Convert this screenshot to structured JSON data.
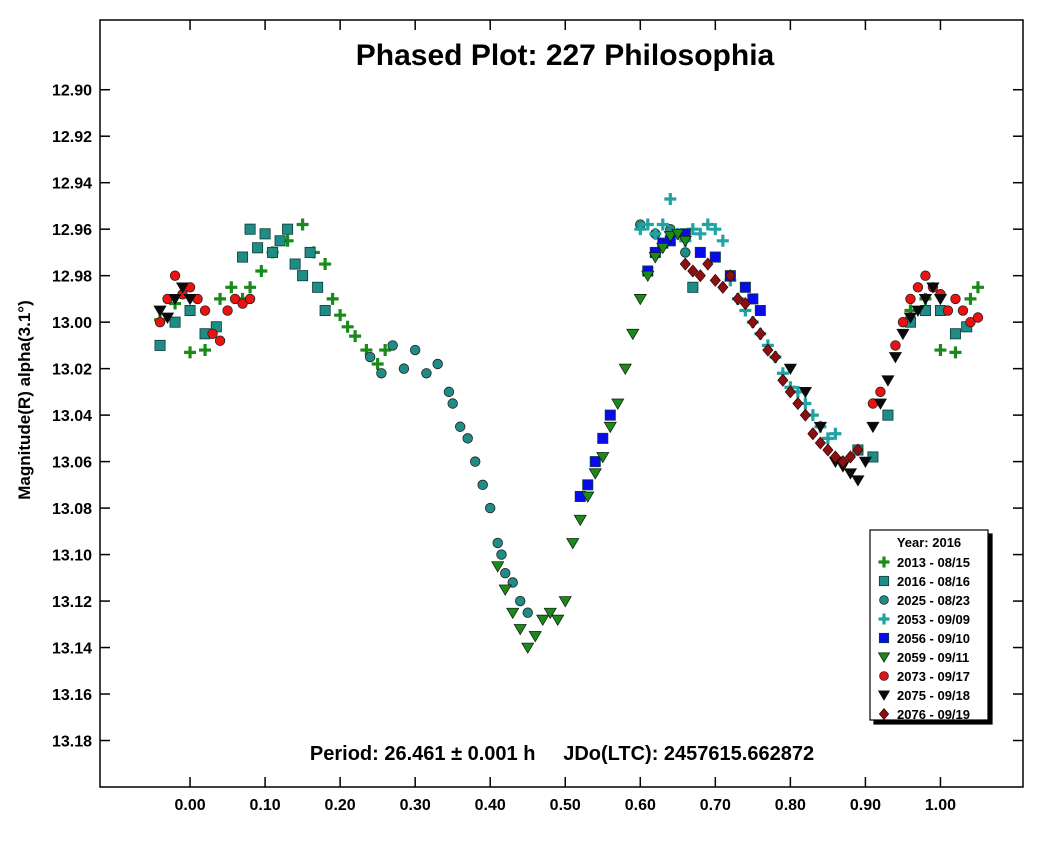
{
  "chart_data": {
    "type": "scatter",
    "title": "Phased Plot: 227 Philosophia",
    "xlabel": "",
    "ylabel": "Magnitude(R) alpha(3.1°)",
    "footer": "Period: 26.461 ± 0.001 h     JDo(LTC): 2457615.662872",
    "xlim": [
      -0.12,
      1.11
    ],
    "ylim": [
      12.87,
      13.2
    ],
    "y_inverted": true,
    "x_ticks": [
      "0.00",
      "0.10",
      "0.20",
      "0.30",
      "0.40",
      "0.50",
      "0.60",
      "0.70",
      "0.80",
      "0.90",
      "1.00"
    ],
    "y_ticks": [
      "12.90",
      "12.92",
      "12.94",
      "12.96",
      "12.98",
      "13.00",
      "13.02",
      "13.04",
      "13.06",
      "13.08",
      "13.10",
      "13.12",
      "13.14",
      "13.16",
      "13.18"
    ],
    "legend": {
      "title": "Year: 2016",
      "placement": "bottom-right",
      "entries": [
        {
          "label": "2013 - 08/15",
          "marker": "plus",
          "color": "#1a8a1a"
        },
        {
          "label": "2016 - 08/16",
          "marker": "square",
          "color": "#1f8c86"
        },
        {
          "label": "2025 - 08/23",
          "marker": "circle",
          "color": "#1f8c86"
        },
        {
          "label": "2053 - 09/09",
          "marker": "plus",
          "color": "#22a3a3"
        },
        {
          "label": "2056 - 09/10",
          "marker": "square",
          "color": "#0a0aee"
        },
        {
          "label": "2059 - 09/11",
          "marker": "triangle-down",
          "color": "#1a8a1a"
        },
        {
          "label": "2073 - 09/17",
          "marker": "circle",
          "color": "#ee1111"
        },
        {
          "label": "2075 - 09/18",
          "marker": "triangle-down",
          "color": "#0a0a0a"
        },
        {
          "label": "2076 - 09/19",
          "marker": "diamond",
          "color": "#8b1010"
        }
      ]
    },
    "series": [
      {
        "name": "2013 - 08/15",
        "points": [
          [
            -0.04,
            12.999
          ],
          [
            -0.02,
            12.992
          ],
          [
            0.0,
            13.013
          ],
          [
            0.02,
            13.012
          ],
          [
            0.04,
            12.99
          ],
          [
            0.055,
            12.985
          ],
          [
            0.07,
            12.99
          ],
          [
            0.08,
            12.985
          ],
          [
            0.095,
            12.978
          ],
          [
            0.11,
            12.97
          ],
          [
            0.13,
            12.965
          ],
          [
            0.15,
            12.958
          ],
          [
            0.165,
            12.97
          ],
          [
            0.18,
            12.975
          ],
          [
            0.19,
            12.99
          ],
          [
            0.2,
            12.997
          ],
          [
            0.21,
            13.002
          ],
          [
            0.22,
            13.006
          ],
          [
            0.235,
            13.012
          ],
          [
            0.25,
            13.018
          ],
          [
            0.26,
            13.012
          ],
          [
            0.96,
            12.995
          ],
          [
            0.98,
            12.99
          ],
          [
            1.0,
            13.012
          ],
          [
            1.02,
            13.013
          ],
          [
            1.04,
            12.99
          ],
          [
            1.05,
            12.985
          ]
        ]
      },
      {
        "name": "2016 - 08/16",
        "points": [
          [
            -0.04,
            13.01
          ],
          [
            -0.02,
            13.0
          ],
          [
            0.0,
            12.995
          ],
          [
            0.02,
            13.005
          ],
          [
            0.035,
            13.002
          ],
          [
            0.07,
            12.972
          ],
          [
            0.08,
            12.96
          ],
          [
            0.09,
            12.968
          ],
          [
            0.1,
            12.962
          ],
          [
            0.11,
            12.97
          ],
          [
            0.12,
            12.965
          ],
          [
            0.13,
            12.96
          ],
          [
            0.14,
            12.975
          ],
          [
            0.15,
            12.98
          ],
          [
            0.16,
            12.97
          ],
          [
            0.17,
            12.985
          ],
          [
            0.18,
            12.995
          ],
          [
            0.67,
            12.985
          ],
          [
            0.89,
            13.055
          ],
          [
            0.91,
            13.058
          ],
          [
            0.93,
            13.04
          ],
          [
            0.96,
            13.0
          ],
          [
            0.98,
            12.995
          ],
          [
            1.0,
            12.995
          ],
          [
            1.02,
            13.005
          ],
          [
            1.035,
            13.002
          ]
        ]
      },
      {
        "name": "2025 - 08/23",
        "points": [
          [
            0.24,
            13.015
          ],
          [
            0.255,
            13.022
          ],
          [
            0.27,
            13.01
          ],
          [
            0.285,
            13.02
          ],
          [
            0.3,
            13.012
          ],
          [
            0.315,
            13.022
          ],
          [
            0.33,
            13.018
          ],
          [
            0.345,
            13.03
          ],
          [
            0.35,
            13.035
          ],
          [
            0.36,
            13.045
          ],
          [
            0.37,
            13.05
          ],
          [
            0.38,
            13.06
          ],
          [
            0.39,
            13.07
          ],
          [
            0.4,
            13.08
          ],
          [
            0.41,
            13.095
          ],
          [
            0.415,
            13.1
          ],
          [
            0.42,
            13.108
          ],
          [
            0.43,
            13.112
          ],
          [
            0.44,
            13.12
          ],
          [
            0.45,
            13.125
          ],
          [
            0.6,
            12.958
          ],
          [
            0.62,
            12.962
          ],
          [
            0.64,
            12.96
          ],
          [
            0.66,
            12.97
          ]
        ]
      },
      {
        "name": "2053 - 09/09",
        "points": [
          [
            0.6,
            12.96
          ],
          [
            0.61,
            12.958
          ],
          [
            0.62,
            12.962
          ],
          [
            0.63,
            12.958
          ],
          [
            0.64,
            12.947
          ],
          [
            0.65,
            12.962
          ],
          [
            0.66,
            12.965
          ],
          [
            0.67,
            12.96
          ],
          [
            0.68,
            12.962
          ],
          [
            0.69,
            12.958
          ],
          [
            0.7,
            12.96
          ],
          [
            0.71,
            12.965
          ],
          [
            0.72,
            12.982
          ],
          [
            0.73,
            12.99
          ],
          [
            0.74,
            12.995
          ],
          [
            0.75,
            13.0
          ],
          [
            0.76,
            13.005
          ],
          [
            0.77,
            13.01
          ],
          [
            0.78,
            13.015
          ],
          [
            0.79,
            13.022
          ],
          [
            0.8,
            13.028
          ],
          [
            0.81,
            13.03
          ],
          [
            0.82,
            13.035
          ],
          [
            0.83,
            13.04
          ],
          [
            0.84,
            13.045
          ],
          [
            0.85,
            13.05
          ],
          [
            0.86,
            13.048
          ]
        ]
      },
      {
        "name": "2056 - 09/10",
        "points": [
          [
            0.52,
            13.075
          ],
          [
            0.53,
            13.07
          ],
          [
            0.54,
            13.06
          ],
          [
            0.55,
            13.05
          ],
          [
            0.56,
            13.04
          ],
          [
            0.61,
            12.978
          ],
          [
            0.62,
            12.97
          ],
          [
            0.63,
            12.966
          ],
          [
            0.64,
            12.965
          ],
          [
            0.66,
            12.962
          ],
          [
            0.68,
            12.97
          ],
          [
            0.7,
            12.972
          ],
          [
            0.72,
            12.98
          ],
          [
            0.74,
            12.985
          ],
          [
            0.75,
            12.99
          ],
          [
            0.76,
            12.995
          ]
        ]
      },
      {
        "name": "2059 - 09/11",
        "points": [
          [
            0.41,
            13.105
          ],
          [
            0.42,
            13.115
          ],
          [
            0.43,
            13.125
          ],
          [
            0.44,
            13.132
          ],
          [
            0.45,
            13.14
          ],
          [
            0.46,
            13.135
          ],
          [
            0.47,
            13.128
          ],
          [
            0.48,
            13.125
          ],
          [
            0.49,
            13.128
          ],
          [
            0.5,
            13.12
          ],
          [
            0.51,
            13.095
          ],
          [
            0.52,
            13.085
          ],
          [
            0.53,
            13.075
          ],
          [
            0.54,
            13.065
          ],
          [
            0.55,
            13.058
          ],
          [
            0.56,
            13.045
          ],
          [
            0.57,
            13.035
          ],
          [
            0.58,
            13.02
          ],
          [
            0.59,
            13.005
          ],
          [
            0.6,
            12.99
          ],
          [
            0.61,
            12.98
          ],
          [
            0.62,
            12.972
          ],
          [
            0.63,
            12.968
          ],
          [
            0.64,
            12.963
          ],
          [
            0.65,
            12.962
          ],
          [
            0.66,
            12.965
          ]
        ]
      },
      {
        "name": "2073 - 09/17",
        "points": [
          [
            -0.04,
            13.0
          ],
          [
            -0.03,
            12.99
          ],
          [
            -0.02,
            12.98
          ],
          [
            -0.01,
            12.988
          ],
          [
            0.0,
            12.985
          ],
          [
            0.01,
            12.99
          ],
          [
            0.02,
            12.995
          ],
          [
            0.03,
            13.005
          ],
          [
            0.04,
            13.008
          ],
          [
            0.05,
            12.995
          ],
          [
            0.06,
            12.99
          ],
          [
            0.07,
            12.992
          ],
          [
            0.08,
            12.99
          ],
          [
            0.91,
            13.035
          ],
          [
            0.92,
            13.03
          ],
          [
            0.94,
            13.01
          ],
          [
            0.95,
            13.0
          ],
          [
            0.96,
            12.99
          ],
          [
            0.97,
            12.985
          ],
          [
            0.98,
            12.98
          ],
          [
            0.99,
            12.985
          ],
          [
            1.0,
            12.988
          ],
          [
            1.01,
            12.995
          ],
          [
            1.02,
            12.99
          ],
          [
            1.03,
            12.995
          ],
          [
            1.04,
            13.0
          ],
          [
            1.05,
            12.998
          ]
        ]
      },
      {
        "name": "2075 - 09/18",
        "points": [
          [
            -0.04,
            12.995
          ],
          [
            -0.03,
            12.998
          ],
          [
            -0.02,
            12.99
          ],
          [
            -0.01,
            12.985
          ],
          [
            0.0,
            12.99
          ],
          [
            0.8,
            13.02
          ],
          [
            0.82,
            13.03
          ],
          [
            0.84,
            13.045
          ],
          [
            0.86,
            13.06
          ],
          [
            0.87,
            13.062
          ],
          [
            0.88,
            13.065
          ],
          [
            0.89,
            13.068
          ],
          [
            0.9,
            13.06
          ],
          [
            0.91,
            13.045
          ],
          [
            0.92,
            13.035
          ],
          [
            0.93,
            13.025
          ],
          [
            0.94,
            13.015
          ],
          [
            0.95,
            13.005
          ],
          [
            0.96,
            12.998
          ],
          [
            0.97,
            12.995
          ],
          [
            0.98,
            12.99
          ],
          [
            0.99,
            12.985
          ],
          [
            1.0,
            12.99
          ]
        ]
      },
      {
        "name": "2076 - 09/19",
        "points": [
          [
            0.66,
            12.975
          ],
          [
            0.67,
            12.978
          ],
          [
            0.68,
            12.98
          ],
          [
            0.69,
            12.975
          ],
          [
            0.7,
            12.982
          ],
          [
            0.71,
            12.985
          ],
          [
            0.72,
            12.98
          ],
          [
            0.73,
            12.99
          ],
          [
            0.74,
            12.992
          ],
          [
            0.75,
            13.0
          ],
          [
            0.76,
            13.005
          ],
          [
            0.77,
            13.012
          ],
          [
            0.78,
            13.015
          ],
          [
            0.79,
            13.025
          ],
          [
            0.8,
            13.03
          ],
          [
            0.81,
            13.035
          ],
          [
            0.82,
            13.04
          ],
          [
            0.83,
            13.048
          ],
          [
            0.84,
            13.052
          ],
          [
            0.85,
            13.055
          ],
          [
            0.86,
            13.058
          ],
          [
            0.87,
            13.06
          ],
          [
            0.88,
            13.058
          ],
          [
            0.89,
            13.055
          ]
        ]
      }
    ]
  }
}
